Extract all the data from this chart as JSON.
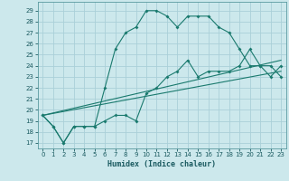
{
  "title": "",
  "xlabel": "Humidex (Indice chaleur)",
  "bg_color": "#cce8ec",
  "grid_color": "#aad0d8",
  "line_color": "#1a7a6e",
  "xlim": [
    -0.5,
    23.5
  ],
  "ylim": [
    16.5,
    29.8
  ],
  "xticks": [
    0,
    1,
    2,
    3,
    4,
    5,
    6,
    7,
    8,
    9,
    10,
    11,
    12,
    13,
    14,
    15,
    16,
    17,
    18,
    19,
    20,
    21,
    22,
    23
  ],
  "yticks": [
    17,
    18,
    19,
    20,
    21,
    22,
    23,
    24,
    25,
    26,
    27,
    28,
    29
  ],
  "series": [
    {
      "x": [
        0,
        1,
        2,
        3,
        4,
        5,
        6,
        7,
        8,
        9,
        10,
        11,
        12,
        13,
        14,
        15,
        16,
        17,
        18,
        19,
        20,
        21,
        22,
        23
      ],
      "y": [
        19.5,
        18.5,
        17.0,
        18.5,
        18.5,
        18.5,
        22.0,
        25.5,
        27.0,
        27.5,
        29.0,
        29.0,
        28.5,
        27.5,
        28.5,
        28.5,
        28.5,
        27.5,
        27.0,
        25.5,
        24.0,
        24.0,
        23.0,
        24.0
      ],
      "marker": true
    },
    {
      "x": [
        0,
        23
      ],
      "y": [
        19.5,
        24.5
      ],
      "marker": false
    },
    {
      "x": [
        0,
        23
      ],
      "y": [
        19.5,
        23.5
      ],
      "marker": false
    },
    {
      "x": [
        0,
        1,
        2,
        3,
        4,
        5,
        6,
        7,
        8,
        9,
        10,
        11,
        12,
        13,
        14,
        15,
        16,
        17,
        18,
        19,
        20,
        21,
        22,
        23
      ],
      "y": [
        19.5,
        18.5,
        17.0,
        18.5,
        18.5,
        18.5,
        19.0,
        19.5,
        19.5,
        19.0,
        21.5,
        22.0,
        23.0,
        23.5,
        24.5,
        23.0,
        23.5,
        23.5,
        23.5,
        24.0,
        25.5,
        24.0,
        24.0,
        23.0
      ],
      "marker": true
    }
  ]
}
